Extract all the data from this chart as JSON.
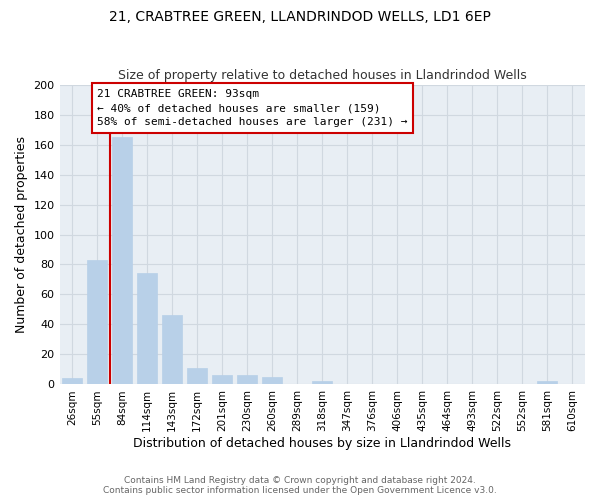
{
  "title1": "21, CRABTREE GREEN, LLANDRINDOD WELLS, LD1 6EP",
  "title2": "Size of property relative to detached houses in Llandrindod Wells",
  "xlabel": "Distribution of detached houses by size in Llandrindod Wells",
  "ylabel": "Number of detached properties",
  "bar_labels": [
    "26sqm",
    "55sqm",
    "84sqm",
    "114sqm",
    "143sqm",
    "172sqm",
    "201sqm",
    "230sqm",
    "260sqm",
    "289sqm",
    "318sqm",
    "347sqm",
    "376sqm",
    "406sqm",
    "435sqm",
    "464sqm",
    "493sqm",
    "522sqm",
    "552sqm",
    "581sqm",
    "610sqm"
  ],
  "bar_values": [
    4,
    83,
    165,
    74,
    46,
    11,
    6,
    6,
    5,
    0,
    2,
    0,
    0,
    0,
    0,
    0,
    0,
    0,
    0,
    2,
    0
  ],
  "bar_color": "#b8d0e8",
  "bar_edge_color": "#b8d0e8",
  "vline_color": "#cc0000",
  "ylim": [
    0,
    200
  ],
  "yticks": [
    0,
    20,
    40,
    60,
    80,
    100,
    120,
    140,
    160,
    180,
    200
  ],
  "annotation_title": "21 CRABTREE GREEN: 93sqm",
  "annotation_line1": "← 40% of detached houses are smaller (159)",
  "annotation_line2": "58% of semi-detached houses are larger (231) →",
  "annotation_box_color": "#ffffff",
  "annotation_box_edge": "#cc0000",
  "footer1": "Contains HM Land Registry data © Crown copyright and database right 2024.",
  "footer2": "Contains public sector information licensed under the Open Government Licence v3.0.",
  "bg_color": "#ffffff",
  "grid_color": "#d0d8e0",
  "fig_width": 6.0,
  "fig_height": 5.0
}
